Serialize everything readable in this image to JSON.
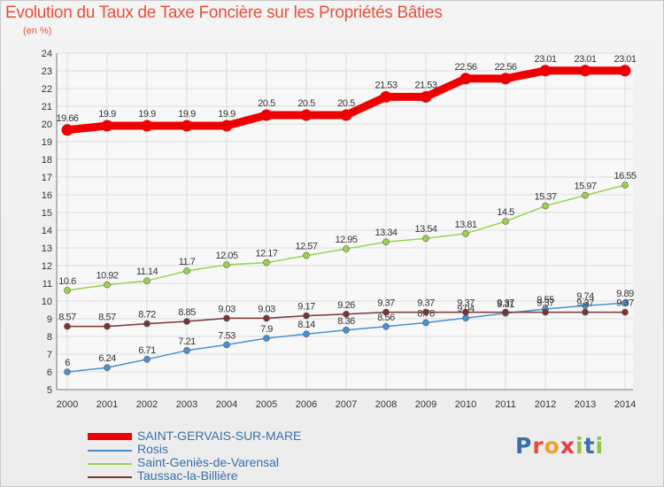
{
  "chart_data": {
    "type": "line",
    "title": "Evolution du Taux de Taxe Foncière sur les Propriétés Bâties",
    "subtitle": "(en %)",
    "x": [
      "2000",
      "2001",
      "2002",
      "2003",
      "2004",
      "2005",
      "2006",
      "2007",
      "2008",
      "2009",
      "2010",
      "2011",
      "2012",
      "2013",
      "2014"
    ],
    "ylim": [
      5,
      24
    ],
    "yticks": [
      5,
      6,
      7,
      8,
      9,
      10,
      11,
      12,
      13,
      14,
      15,
      16,
      17,
      18,
      19,
      20,
      21,
      22,
      23,
      24
    ],
    "grid": true,
    "legend_position": "bottom-left",
    "series": [
      {
        "name": "SAINT-GERVAIS-SUR-MARE",
        "color": "#ee0000",
        "values": [
          19.66,
          19.9,
          19.9,
          19.9,
          19.9,
          20.5,
          20.5,
          20.5,
          21.53,
          21.53,
          22.56,
          22.56,
          23.01,
          23.01,
          23.01
        ],
        "labels": [
          "19.66",
          "19.9",
          "19.9",
          "19.9",
          "19.9",
          "20.5",
          "20.5",
          "20.5",
          "21.53",
          "21.53",
          "22.56",
          "22.56",
          "23.01",
          "23.01",
          "23.01"
        ]
      },
      {
        "name": "Rosis",
        "color": "#4a8fd0",
        "values": [
          6,
          6.24,
          6.71,
          7.21,
          7.53,
          7.9,
          8.14,
          8.36,
          8.56,
          8.78,
          9.04,
          9.31,
          9.55,
          9.74,
          9.89
        ],
        "labels": [
          "6",
          "6.24",
          "6.71",
          "7.21",
          "7.53",
          "7.9",
          "8.14",
          "8.36",
          "8.56",
          "8.78",
          "9.04",
          "9.31",
          "9.55",
          "9.74",
          "9.89"
        ]
      },
      {
        "name": "Saint-Geniès-de-Varensal",
        "color": "#9ad24e",
        "values": [
          10.6,
          10.92,
          11.14,
          11.7,
          12.05,
          12.17,
          12.57,
          12.95,
          13.34,
          13.54,
          13.81,
          14.5,
          15.37,
          15.97,
          16.55
        ],
        "labels": [
          "10.6",
          "10.92",
          "11.14",
          "11.7",
          "12.05",
          "12.17",
          "12.57",
          "12.95",
          "13.34",
          "13.54",
          "13.81",
          "14.5",
          "15.37",
          "15.97",
          "16.55"
        ]
      },
      {
        "name": "Taussac-la-Billière",
        "color": "#7a3434",
        "values": [
          8.57,
          8.57,
          8.72,
          8.85,
          9.03,
          9.03,
          9.17,
          9.26,
          9.37,
          9.37,
          9.37,
          9.37,
          9.37,
          9.37,
          9.37
        ],
        "labels": [
          "8.57",
          "8.57",
          "8.72",
          "8.85",
          "9.03",
          "9.03",
          "9.17",
          "9.26",
          "9.37",
          "9.37",
          "9.37",
          "9.37",
          "9.37",
          "9.37",
          "9.37"
        ]
      }
    ]
  },
  "logo": {
    "letters": [
      "P",
      "r",
      "o",
      "x",
      "i",
      "t",
      "i"
    ]
  }
}
